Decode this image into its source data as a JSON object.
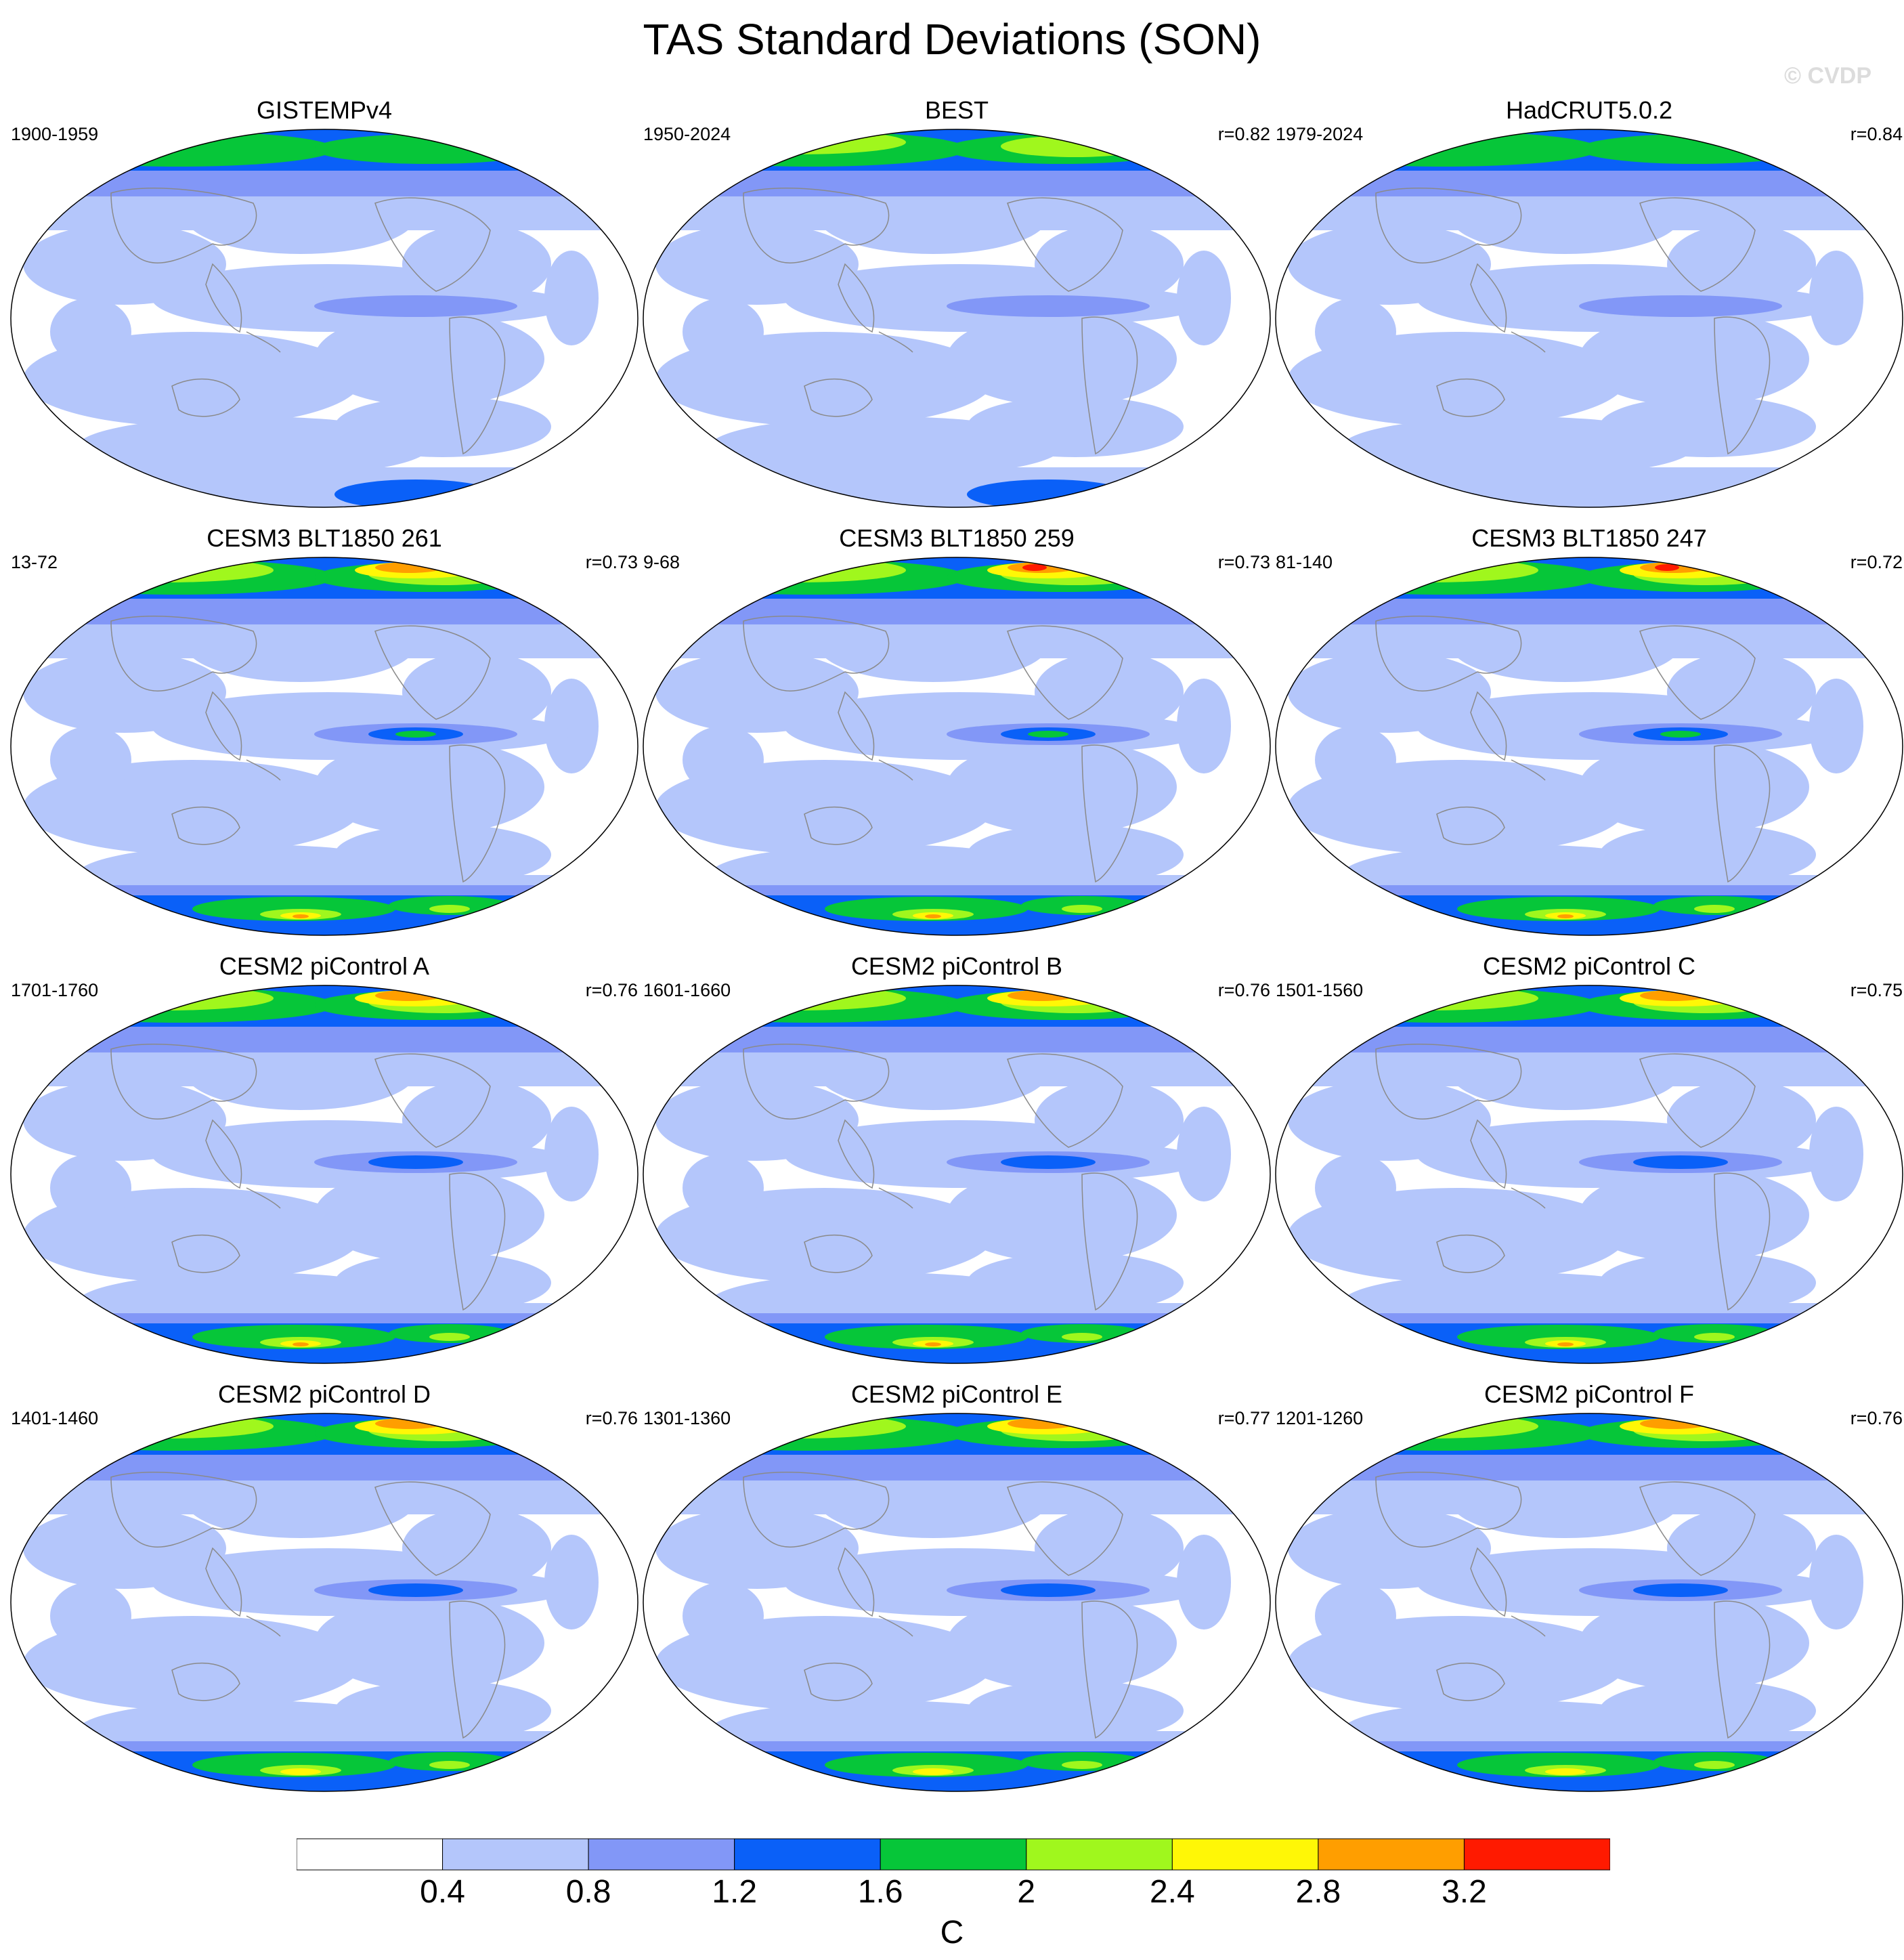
{
  "title": "TAS Standard Deviations (SON)",
  "watermark": "© CVDP",
  "units": "C",
  "colorbar": {
    "colors": [
      "#ffffff",
      "#b4c6fb",
      "#8297f7",
      "#0a60f8",
      "#06c639",
      "#a0f71d",
      "#fff706",
      "#ff9e00",
      "#ff1a00"
    ],
    "labels": [
      "0.4",
      "0.8",
      "1.2",
      "1.6",
      "2",
      "2.4",
      "2.8",
      "3.2"
    ]
  },
  "panels": [
    {
      "title": "GISTEMPv4",
      "period": "1900-1959",
      "corr": "",
      "north": 4,
      "south": 2,
      "variant": 0
    },
    {
      "title": "BEST",
      "period": "1950-2024",
      "corr": "r=0.82",
      "north": 5,
      "south": 2,
      "variant": 1
    },
    {
      "title": "HadCRUT5.0.2",
      "period": "1979-2024",
      "corr": "r=0.84",
      "north": 4,
      "south": 1,
      "variant": 0
    },
    {
      "title": "CESM3 BLT1850 261",
      "period": "13-72",
      "corr": "r=0.73",
      "north": 7,
      "south": 7,
      "variant": 2
    },
    {
      "title": "CESM3 BLT1850 259",
      "period": "9-68",
      "corr": "r=0.73",
      "north": 8,
      "south": 7,
      "variant": 2
    },
    {
      "title": "CESM3 BLT1850 247",
      "period": "81-140",
      "corr": "r=0.72",
      "north": 8,
      "south": 7,
      "variant": 2
    },
    {
      "title": "CESM2 piControl A",
      "period": "1701-1760",
      "corr": "r=0.76",
      "north": 7,
      "south": 7,
      "variant": 3
    },
    {
      "title": "CESM2 piControl B",
      "period": "1601-1660",
      "corr": "r=0.76",
      "north": 7,
      "south": 7,
      "variant": 3
    },
    {
      "title": "CESM2 piControl C",
      "period": "1501-1560",
      "corr": "r=0.75",
      "north": 7,
      "south": 7,
      "variant": 3
    },
    {
      "title": "CESM2 piControl D",
      "period": "1401-1460",
      "corr": "r=0.76",
      "north": 7,
      "south": 6,
      "variant": 3
    },
    {
      "title": "CESM2 piControl E",
      "period": "1301-1360",
      "corr": "r=0.77",
      "north": 7,
      "south": 6,
      "variant": 3
    },
    {
      "title": "CESM2 piControl F",
      "period": "1201-1260",
      "corr": "r=0.76",
      "north": 7,
      "south": 6,
      "variant": 3
    }
  ]
}
